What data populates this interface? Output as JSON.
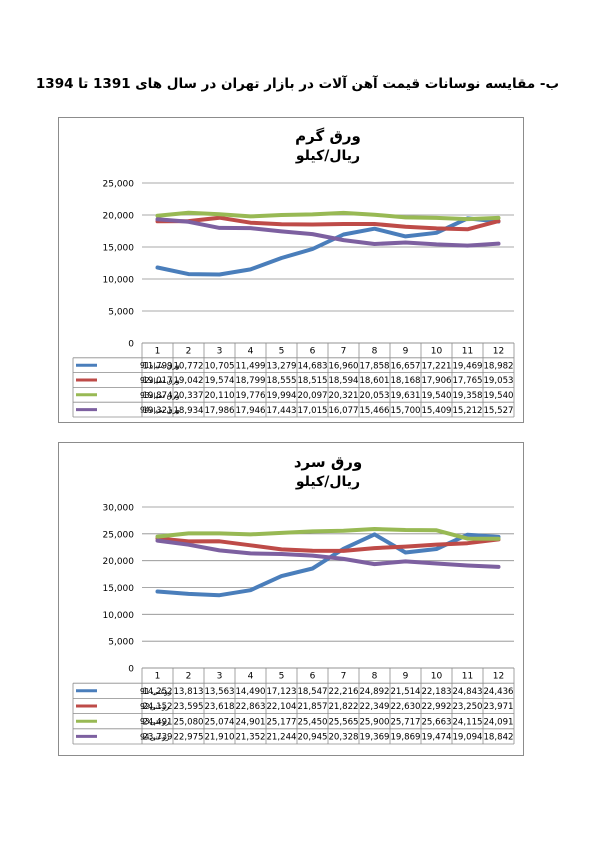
{
  "page_heading": "ب- مقایسه نوسانات قیمت آهن آلات در بازار تهران در سال های 1391 تا 1394",
  "chart_data": [
    {
      "type": "line",
      "title": "ورق گرم",
      "subtitle": "ریال/کیلو",
      "categories": [
        "1",
        "2",
        "3",
        "4",
        "5",
        "6",
        "7",
        "8",
        "9",
        "10",
        "11",
        "12"
      ],
      "ylim": [
        0,
        25000
      ],
      "yticks": [
        0,
        5000,
        10000,
        15000,
        20000,
        25000
      ],
      "ytick_labels": [
        "0",
        "5,000",
        "10,000",
        "15,000",
        "20,000",
        "25,000"
      ],
      "grid": true,
      "legend": "data-table",
      "series": [
        {
          "name": "ورق سیاه91",
          "color": "#4a7ebb",
          "values": [
            11799,
            10772,
            10705,
            11499,
            13279,
            14683,
            16960,
            17858,
            16657,
            17221,
            19469,
            18982
          ],
          "labels": [
            "11,799",
            "10,772",
            "10,705",
            "11,499",
            "13,279",
            "14,683",
            "16,960",
            "17,858",
            "16,657",
            "17,221",
            "19,469",
            "18,982"
          ]
        },
        {
          "name": "ورق سیاه92",
          "color": "#be4b48",
          "values": [
            19017,
            19042,
            19574,
            18799,
            18555,
            18515,
            18594,
            18601,
            18168,
            17906,
            17765,
            19053
          ],
          "labels": [
            "19,017",
            "19,042",
            "19,574",
            "18,799",
            "18,555",
            "18,515",
            "18,594",
            "18,601",
            "18,168",
            "17,906",
            "17,765",
            "19,053"
          ]
        },
        {
          "name": "ورق سیاه93",
          "color": "#98b954",
          "values": [
            19874,
            20337,
            20110,
            19776,
            19994,
            20097,
            20321,
            20053,
            19631,
            19540,
            19358,
            19540
          ],
          "labels": [
            "19,874",
            "20,337",
            "20,110",
            "19,776",
            "19,994",
            "20,097",
            "20,321",
            "20,053",
            "19,631",
            "19,540",
            "19,358",
            "19,540"
          ]
        },
        {
          "name": "ورق سیاه94",
          "color": "#7d60a0",
          "values": [
            19321,
            18934,
            17986,
            17946,
            17443,
            17015,
            16077,
            15466,
            15700,
            15409,
            15212,
            15527
          ],
          "labels": [
            "19,321",
            "18,934",
            "17,986",
            "17,946",
            "17,443",
            "17,015",
            "16,077",
            "15,466",
            "15,700",
            "15,409",
            "15,212",
            "15,527"
          ]
        }
      ]
    },
    {
      "type": "line",
      "title": "ورق سرد",
      "subtitle": "ریال/کیلو",
      "categories": [
        "1",
        "2",
        "3",
        "4",
        "5",
        "6",
        "7",
        "8",
        "9",
        "10",
        "11",
        "12"
      ],
      "ylim": [
        0,
        30000
      ],
      "yticks": [
        0,
        5000,
        10000,
        15000,
        20000,
        25000,
        30000
      ],
      "ytick_labels": [
        "0",
        "5,000",
        "10,000",
        "15,000",
        "20,000",
        "25,000",
        "30,000"
      ],
      "grid": true,
      "legend": "data-table",
      "series": [
        {
          "name": "روغنی 91",
          "color": "#4a7ebb",
          "values": [
            14252,
            13813,
            13563,
            14490,
            17123,
            18547,
            22216,
            24892,
            21514,
            22183,
            24843,
            24436
          ],
          "labels": [
            "14,252",
            "13,813",
            "13,563",
            "14,490",
            "17,123",
            "18,547",
            "22,216",
            "24,892",
            "21,514",
            "22,183",
            "24,843",
            "24,436"
          ]
        },
        {
          "name": "روغنی92",
          "color": "#be4b48",
          "values": [
            24152,
            23595,
            23618,
            22863,
            22104,
            21857,
            21822,
            22349,
            22630,
            22992,
            23250,
            23971
          ],
          "labels": [
            "24,152",
            "23,595",
            "23,618",
            "22,863",
            "22,104",
            "21,857",
            "21,822",
            "22,349",
            "22,630",
            "22,992",
            "23,250",
            "23,971"
          ]
        },
        {
          "name": "روغنی93",
          "color": "#98b954",
          "values": [
            24491,
            25080,
            25074,
            24901,
            25177,
            25450,
            25565,
            25900,
            25717,
            25663,
            24115,
            24091
          ],
          "labels": [
            "24,491",
            "25,080",
            "25,074",
            "24,901",
            "25,177",
            "25,450",
            "25,565",
            "25,900",
            "25,717",
            "25,663",
            "24,115",
            "24,091"
          ]
        },
        {
          "name": "روغنی94",
          "color": "#7d60a0",
          "values": [
            23739,
            22975,
            21910,
            21352,
            21244,
            20945,
            20328,
            19369,
            19869,
            19474,
            19094,
            18842
          ],
          "labels": [
            "23,739",
            "22,975",
            "21,910",
            "21,352",
            "21,244",
            "20,945",
            "20,328",
            "19,369",
            "19,869",
            "19,474",
            "19,094",
            "18,842"
          ]
        }
      ]
    }
  ]
}
